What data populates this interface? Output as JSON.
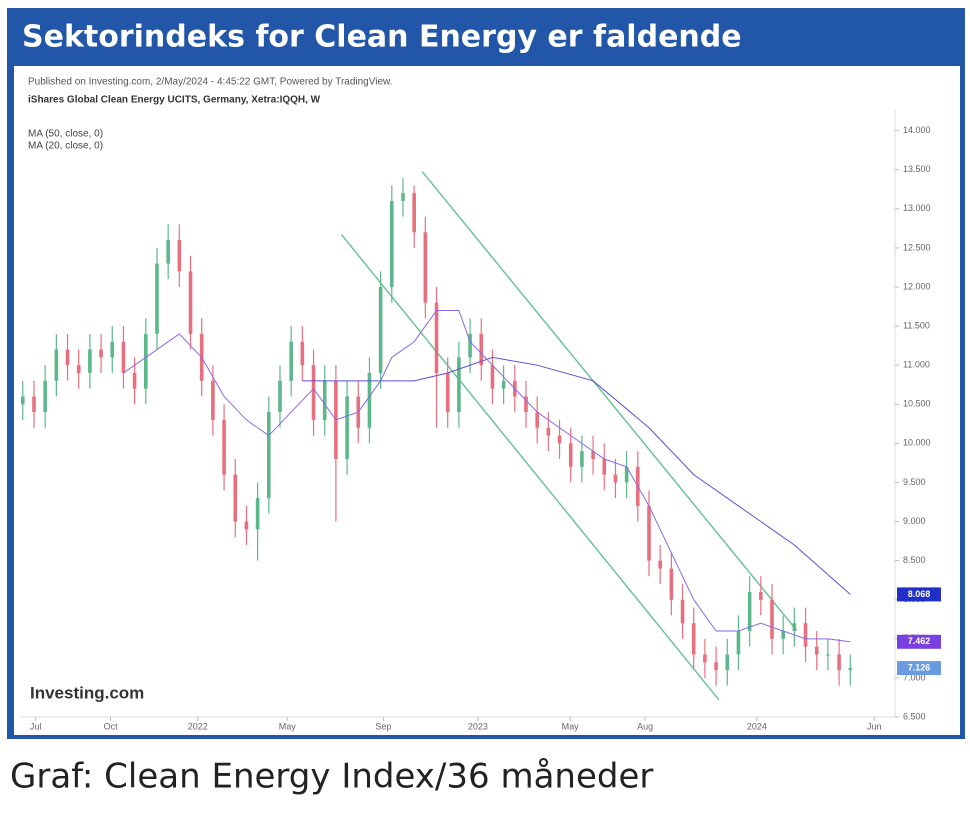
{
  "header": {
    "title": "Sektorindeks for Clean Energy er faldende"
  },
  "caption": "Graf: Clean Energy Index/36 måneder",
  "chart_data": {
    "type": "candlestick",
    "published": "Published on Investing.com, 2/May/2024 - 4:45:22 GMT, Powered by TradingView.",
    "title": "iShares Global Clean Energy UCITS, Germany, Xetra:IQQH, W",
    "logo": "Investing.com",
    "up_color": "#5cb88a",
    "down_color": "#e8707e",
    "x": [
      0,
      2,
      4,
      6,
      8,
      10,
      12,
      14,
      16,
      18,
      20,
      22,
      24,
      26,
      28,
      30,
      32,
      34,
      36,
      38,
      40,
      42,
      44,
      46,
      48,
      50,
      52,
      54,
      56,
      58,
      60,
      62,
      64,
      66,
      68,
      70,
      72,
      74,
      76,
      78,
      80,
      82,
      84,
      86,
      88,
      90,
      92,
      94,
      96,
      98,
      100,
      102,
      104,
      106,
      108,
      110,
      112,
      114,
      116,
      118,
      120,
      122,
      124,
      126,
      128,
      130,
      132,
      134,
      136,
      138,
      140,
      142,
      144,
      146,
      148
    ],
    "open": [
      10.5,
      10.6,
      10.4,
      10.8,
      11.2,
      11.0,
      10.9,
      11.2,
      11.1,
      11.3,
      10.9,
      10.7,
      11.4,
      12.3,
      12.6,
      12.2,
      11.4,
      10.8,
      10.3,
      9.6,
      9.0,
      8.9,
      9.3,
      10.4,
      10.8,
      11.3,
      11.0,
      10.3,
      10.8,
      9.8,
      10.6,
      10.2,
      10.9,
      12.0,
      13.1,
      13.2,
      12.7,
      11.8,
      10.9,
      10.4,
      11.1,
      11.4,
      11.0,
      10.7,
      10.8,
      10.6,
      10.4,
      10.2,
      10.1,
      10.0,
      9.7,
      9.9,
      9.8,
      9.6,
      9.5,
      9.7,
      9.2,
      8.5,
      8.4,
      8.0,
      7.7,
      7.3,
      7.2,
      7.1,
      7.3,
      7.6,
      8.1,
      8.0,
      7.5,
      7.6,
      7.7,
      7.4,
      7.3,
      7.3,
      7.1
    ],
    "high": [
      10.8,
      10.8,
      11.0,
      11.4,
      11.4,
      11.2,
      11.4,
      11.4,
      11.5,
      11.5,
      11.1,
      11.6,
      12.5,
      12.8,
      12.8,
      12.4,
      11.6,
      11.0,
      10.5,
      9.8,
      9.2,
      9.5,
      10.6,
      11.0,
      11.5,
      11.5,
      11.2,
      11.0,
      11.0,
      10.8,
      10.8,
      11.1,
      12.2,
      13.3,
      13.4,
      13.3,
      12.9,
      12.0,
      11.1,
      11.3,
      11.6,
      11.6,
      11.2,
      11.0,
      11.0,
      10.8,
      10.6,
      10.4,
      10.3,
      10.2,
      10.1,
      10.1,
      10.0,
      9.8,
      9.9,
      9.9,
      9.4,
      8.7,
      8.6,
      8.2,
      7.9,
      7.5,
      7.4,
      7.5,
      7.8,
      8.3,
      8.3,
      8.2,
      7.8,
      7.9,
      7.9,
      7.6,
      7.5,
      7.5,
      7.3
    ],
    "low": [
      10.3,
      10.2,
      10.2,
      10.6,
      10.8,
      10.7,
      10.7,
      10.9,
      10.9,
      10.7,
      10.5,
      10.5,
      11.2,
      12.1,
      12.0,
      11.2,
      10.6,
      10.1,
      9.4,
      8.8,
      8.7,
      8.5,
      9.1,
      10.2,
      10.6,
      10.8,
      10.1,
      10.1,
      9.0,
      9.6,
      10.0,
      10.0,
      10.7,
      11.8,
      12.9,
      12.5,
      11.6,
      10.2,
      10.2,
      10.2,
      10.9,
      10.8,
      10.5,
      10.5,
      10.4,
      10.2,
      10.0,
      9.9,
      9.8,
      9.5,
      9.5,
      9.6,
      9.4,
      9.3,
      9.3,
      9.0,
      8.3,
      8.2,
      7.8,
      7.5,
      7.1,
      7.0,
      6.9,
      6.9,
      7.1,
      7.4,
      7.8,
      7.3,
      7.3,
      7.4,
      7.2,
      7.1,
      7.1,
      6.9,
      6.9
    ],
    "close": [
      10.6,
      10.4,
      10.8,
      11.2,
      11.0,
      10.9,
      11.2,
      11.1,
      11.3,
      10.9,
      10.7,
      11.4,
      12.3,
      12.6,
      12.2,
      11.4,
      10.8,
      10.3,
      9.6,
      9.0,
      8.9,
      9.3,
      10.4,
      10.8,
      11.3,
      11.0,
      10.3,
      10.8,
      9.8,
      10.6,
      10.2,
      10.9,
      12.0,
      13.1,
      13.2,
      12.7,
      11.8,
      10.9,
      10.4,
      11.1,
      11.4,
      11.0,
      10.7,
      10.8,
      10.6,
      10.4,
      10.2,
      10.1,
      10.0,
      9.7,
      9.9,
      9.8,
      9.6,
      9.5,
      9.7,
      9.2,
      8.5,
      8.4,
      8.0,
      7.7,
      7.3,
      7.2,
      7.1,
      7.3,
      7.6,
      8.1,
      8.0,
      7.5,
      7.6,
      7.7,
      7.4,
      7.3,
      7.3,
      7.1,
      7.126
    ],
    "last_close_label": "7.126",
    "last_close_color": "#6a9be0",
    "series": [
      {
        "name": "MA (50, close, 0)",
        "color": "#5a4fd6",
        "last_label": "8.068",
        "label_color": "#1f2fc8",
        "x": [
          50,
          60,
          70,
          76,
          84,
          92,
          102,
          112,
          120,
          130,
          138,
          148
        ],
        "values": [
          10.8,
          10.8,
          10.8,
          10.9,
          11.1,
          11.0,
          10.8,
          10.2,
          9.6,
          9.1,
          8.7,
          8.068
        ]
      },
      {
        "name": "MA (20, close, 0)",
        "color": "#8a6ae8",
        "last_label": "7.462",
        "label_color": "#7a3fe0",
        "x": [
          18,
          24,
          28,
          32,
          36,
          40,
          44,
          48,
          52,
          56,
          60,
          64,
          66,
          70,
          74,
          78,
          80,
          84,
          88,
          92,
          96,
          100,
          104,
          108,
          112,
          116,
          120,
          124,
          128,
          132,
          136,
          140,
          144,
          148
        ],
        "values": [
          10.9,
          11.2,
          11.4,
          11.1,
          10.6,
          10.3,
          10.1,
          10.4,
          10.7,
          10.3,
          10.4,
          10.8,
          11.1,
          11.3,
          11.7,
          11.7,
          11.3,
          11.0,
          10.7,
          10.4,
          10.2,
          10.0,
          9.8,
          9.7,
          9.2,
          8.6,
          8.0,
          7.6,
          7.6,
          7.7,
          7.6,
          7.5,
          7.5,
          7.462
        ]
      }
    ],
    "trendline_color": "#6cc39a",
    "trendlines": [
      {
        "x": [
          71.4,
          138.4
        ],
        "values": [
          13.48,
          7.61
        ]
      },
      {
        "x": [
          57,
          124.5
        ],
        "values": [
          12.67,
          6.72
        ]
      }
    ],
    "xlim": [
      -0.5,
      156
    ],
    "xticks": [
      {
        "value": 2.3,
        "label": "Jul"
      },
      {
        "value": 15.7,
        "label": "Oct"
      },
      {
        "value": 31.3,
        "label": "2022"
      },
      {
        "value": 47.3,
        "label": "May"
      },
      {
        "value": 64.5,
        "label": "Sep"
      },
      {
        "value": 81.4,
        "label": "2023"
      },
      {
        "value": 97.9,
        "label": "May"
      },
      {
        "value": 111.3,
        "label": "Aug"
      },
      {
        "value": 131.3,
        "label": "2024"
      },
      {
        "value": 152.3,
        "label": "Jun"
      }
    ],
    "ylim": [
      6.5,
      14.2
    ],
    "yticks": [
      {
        "value": 6.5,
        "label": "6.500"
      },
      {
        "value": 7,
        "label": "7.000"
      },
      {
        "value": 7.5,
        "label": "7.500"
      },
      {
        "value": 8,
        "label": "8.000"
      },
      {
        "value": 8.5,
        "label": "8.500"
      },
      {
        "value": 9,
        "label": "9.000"
      },
      {
        "value": 9.5,
        "label": "9.500"
      },
      {
        "value": 10,
        "label": "10.000"
      },
      {
        "value": 10.5,
        "label": "10.500"
      },
      {
        "value": 11,
        "label": "11.000"
      },
      {
        "value": 11.5,
        "label": "11.500"
      },
      {
        "value": 12,
        "label": "12.000"
      },
      {
        "value": 12.5,
        "label": "12.500"
      },
      {
        "value": 13,
        "label": "13.000"
      },
      {
        "value": 13.5,
        "label": "13.500"
      },
      {
        "value": 14,
        "label": "14.000"
      }
    ]
  }
}
